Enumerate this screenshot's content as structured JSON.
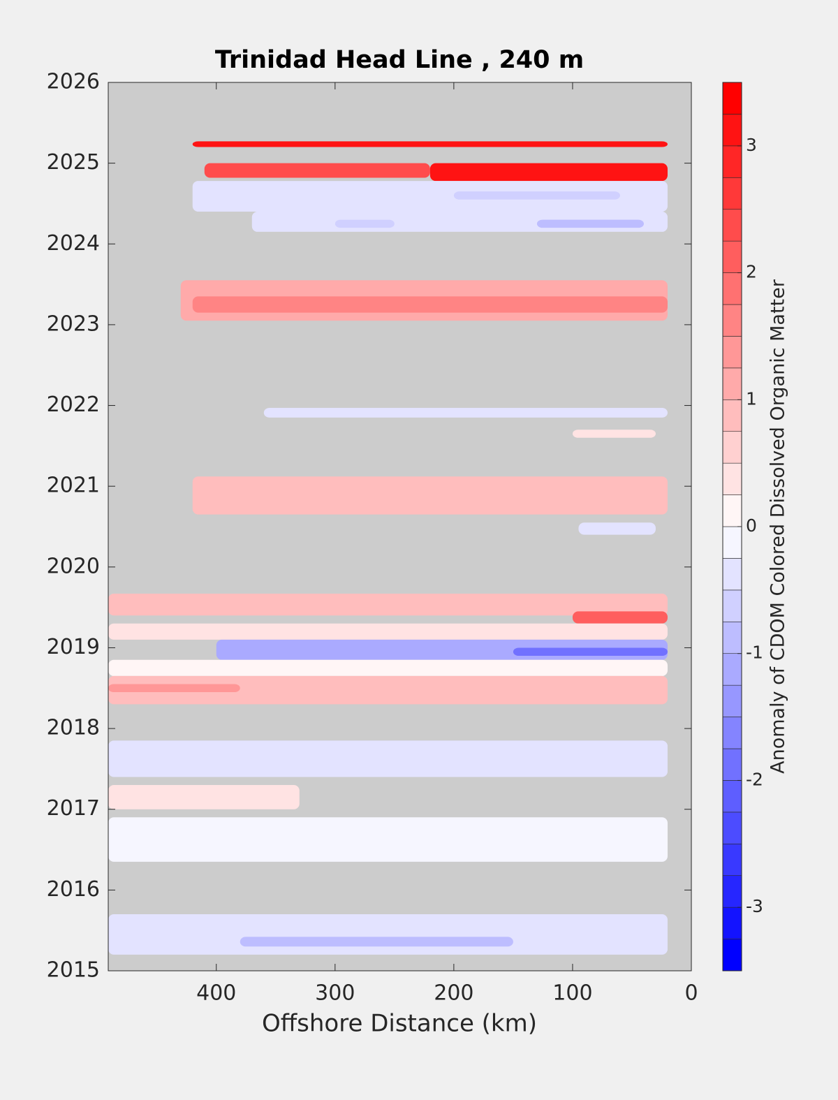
{
  "chart_data": {
    "type": "contour",
    "title": "Trinidad Head Line , 240 m",
    "xlabel": "Offshore Distance (km)",
    "colorbar_label": "Anomaly of CDOM Colored Dissolved Organic Matter",
    "xlim": [
      491,
      0
    ],
    "xticks": [
      400,
      300,
      200,
      100,
      0
    ],
    "ylim": [
      2015,
      2026
    ],
    "yticks": [
      2015,
      2016,
      2017,
      2018,
      2019,
      2020,
      2021,
      2022,
      2023,
      2024,
      2025,
      2026
    ],
    "clim": [
      -3.5,
      3.5
    ],
    "cticks": [
      -3,
      -2,
      -1,
      0,
      1,
      2,
      3
    ],
    "low_color": "#0000ff",
    "mid_color": "#ffffff",
    "high_color": "#ff0000",
    "missing_color": "#cccccc",
    "patches": [
      {
        "x": [
          420,
          20
        ],
        "y": [
          2025.2,
          2025.27
        ],
        "value": 3.2
      },
      {
        "x": [
          410,
          220
        ],
        "y": [
          2024.82,
          2025.0
        ],
        "value": 2.3
      },
      {
        "x": [
          220,
          20
        ],
        "y": [
          2024.78,
          2025.0
        ],
        "value": 3.0
      },
      {
        "x": [
          420,
          20
        ],
        "y": [
          2024.4,
          2024.78
        ],
        "value": -0.3
      },
      {
        "x": [
          200,
          60
        ],
        "y": [
          2024.55,
          2024.65
        ],
        "value": -0.6
      },
      {
        "x": [
          370,
          20
        ],
        "y": [
          2024.15,
          2024.4
        ],
        "value": -0.4
      },
      {
        "x": [
          300,
          250
        ],
        "y": [
          2024.2,
          2024.3
        ],
        "value": -0.7
      },
      {
        "x": [
          130,
          40
        ],
        "y": [
          2024.2,
          2024.3
        ],
        "value": -0.8
      },
      {
        "x": [
          430,
          20
        ],
        "y": [
          2023.05,
          2023.55
        ],
        "value": 1.1
      },
      {
        "x": [
          420,
          20
        ],
        "y": [
          2023.15,
          2023.35
        ],
        "value": 1.5
      },
      {
        "x": [
          360,
          20
        ],
        "y": [
          2021.85,
          2021.97
        ],
        "value": -0.4
      },
      {
        "x": [
          100,
          30
        ],
        "y": [
          2021.6,
          2021.7
        ],
        "value": 0.4
      },
      {
        "x": [
          420,
          20
        ],
        "y": [
          2020.65,
          2021.12
        ],
        "value": 0.9
      },
      {
        "x": [
          95,
          30
        ],
        "y": [
          2020.4,
          2020.55
        ],
        "value": -0.5
      },
      {
        "x": [
          491,
          20
        ],
        "y": [
          2019.4,
          2019.67
        ],
        "value": 0.9
      },
      {
        "x": [
          100,
          20
        ],
        "y": [
          2019.3,
          2019.45
        ],
        "value": 2.0
      },
      {
        "x": [
          491,
          20
        ],
        "y": [
          2019.1,
          2019.3
        ],
        "value": 0.3
      },
      {
        "x": [
          400,
          20
        ],
        "y": [
          2018.85,
          2019.1
        ],
        "value": -1.1
      },
      {
        "x": [
          150,
          20
        ],
        "y": [
          2018.9,
          2019.0
        ],
        "value": -1.8
      },
      {
        "x": [
          491,
          20
        ],
        "y": [
          2018.65,
          2018.85
        ],
        "value": 0.1
      },
      {
        "x": [
          491,
          20
        ],
        "y": [
          2018.3,
          2018.65
        ],
        "value": 0.9
      },
      {
        "x": [
          491,
          380
        ],
        "y": [
          2018.45,
          2018.55
        ],
        "value": 1.4
      },
      {
        "x": [
          491,
          20
        ],
        "y": [
          2017.4,
          2017.85
        ],
        "value": -0.3
      },
      {
        "x": [
          491,
          330
        ],
        "y": [
          2017.0,
          2017.3
        ],
        "value": 0.3
      },
      {
        "x": [
          491,
          20
        ],
        "y": [
          2016.35,
          2016.9
        ],
        "value": -0.1
      },
      {
        "x": [
          491,
          20
        ],
        "y": [
          2015.2,
          2015.7
        ],
        "value": -0.5
      },
      {
        "x": [
          380,
          150
        ],
        "y": [
          2015.3,
          2015.42
        ],
        "value": -0.9
      }
    ]
  }
}
